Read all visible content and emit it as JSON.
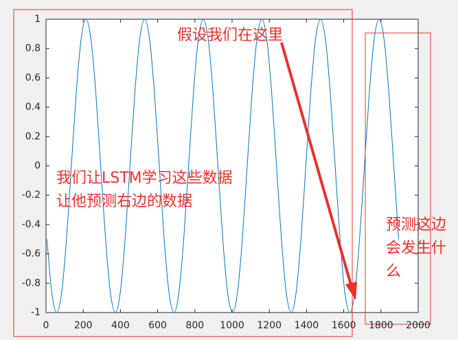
{
  "chart_data": {
    "type": "line",
    "x": [
      5,
      31.25,
      57.5,
      83.75,
      110,
      136.25,
      162.5,
      188.75,
      215,
      241.25,
      267.5,
      293.75,
      320,
      346.25,
      372.5,
      398.75,
      425,
      451.25,
      477.5,
      503.75,
      530,
      556.25,
      582.5,
      608.75,
      635,
      661.25,
      687.5,
      713.75,
      740,
      766.25,
      792.5,
      818.75,
      845,
      871.25,
      897.5,
      923.75,
      950,
      976.25,
      1002.5,
      1028.75,
      1055,
      1081.25,
      1107.5,
      1133.75,
      1160,
      1186.25,
      1212.5,
      1238.75,
      1265,
      1291.25,
      1317.5,
      1343.75,
      1370,
      1396.25,
      1422.5,
      1448.75,
      1475,
      1501.25,
      1527.5,
      1553.75,
      1580,
      1606.25,
      1632.5,
      1658.75,
      1685,
      1711.25,
      1737.5,
      1763.75,
      1790,
      1816.25,
      1842.5,
      1868.75,
      1895
    ],
    "series": [
      {
        "color": "#0072bd",
        "values": [
          -0.5,
          -0.866,
          -1,
          -0.866,
          -0.5,
          0,
          0.5,
          0.866,
          1,
          0.866,
          0.5,
          0,
          -0.5,
          -0.866,
          -1,
          -0.866,
          -0.5,
          0,
          0.5,
          0.866,
          1,
          0.866,
          0.5,
          0,
          -0.5,
          -0.866,
          -1,
          -0.866,
          -0.5,
          0,
          0.5,
          0.866,
          1,
          0.866,
          0.5,
          0,
          -0.5,
          -0.866,
          -1,
          -0.866,
          -0.5,
          0,
          0.5,
          0.866,
          1,
          0.866,
          0.5,
          0,
          -0.5,
          -0.866,
          -1,
          -0.866,
          -0.5,
          0,
          0.5,
          0.866,
          1,
          0.866,
          0.5,
          0,
          -0.5,
          -0.866,
          -1,
          -0.866,
          -0.5,
          0,
          0.5,
          0.866,
          1,
          0.866,
          0.5,
          0,
          -0.5
        ]
      }
    ],
    "xlim": [
      0,
      2000
    ],
    "xticks": [
      0,
      200,
      400,
      600,
      800,
      1000,
      1200,
      1400,
      1600,
      1800,
      2000
    ],
    "ylim": [
      -1,
      1
    ],
    "yticks": [
      -1,
      -0.8,
      -0.6,
      -0.4,
      -0.2,
      0,
      0.2,
      0.4,
      0.6,
      0.8,
      1
    ],
    "grid": false,
    "annotations": {
      "here": "假设我们在这里",
      "learn": [
        "我们让LSTM学习这些数据",
        "让他预测右边的数据"
      ],
      "predict": [
        "预测这边",
        "会发生什",
        "么"
      ]
    }
  }
}
